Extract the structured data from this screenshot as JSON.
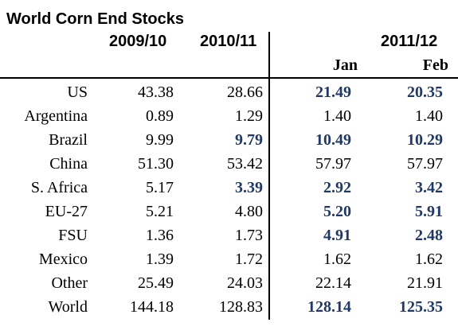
{
  "title": "World Corn End Stocks",
  "headers": {
    "col_2009": "2009/10",
    "col_2010": "2010/11",
    "col_2011": "2011/12",
    "jan": "Jan",
    "feb": "Feb"
  },
  "colors": {
    "revised": "#1f3864",
    "text": "#000000"
  },
  "rows": [
    {
      "name": "US",
      "y2009": "43.38",
      "y2010": "28.66",
      "jan": "21.49",
      "feb": "20.35"
    },
    {
      "name": "Argentina",
      "y2009": "0.89",
      "y2010": "1.29",
      "jan": "1.40",
      "feb": "1.40"
    },
    {
      "name": "Brazil",
      "y2009": "9.99",
      "y2010": "9.79",
      "jan": "10.49",
      "feb": "10.29"
    },
    {
      "name": "China",
      "y2009": "51.30",
      "y2010": "53.42",
      "jan": "57.97",
      "feb": "57.97"
    },
    {
      "name": "S. Africa",
      "y2009": "5.17",
      "y2010": "3.39",
      "jan": "2.92",
      "feb": "3.42"
    },
    {
      "name": "EU-27",
      "y2009": "5.21",
      "y2010": "4.80",
      "jan": "5.20",
      "feb": "5.91"
    },
    {
      "name": "FSU",
      "y2009": "1.36",
      "y2010": "1.73",
      "jan": "4.91",
      "feb": "2.48"
    },
    {
      "name": "Mexico",
      "y2009": "1.39",
      "y2010": "1.72",
      "jan": "1.62",
      "feb": "1.62"
    },
    {
      "name": "Other",
      "y2009": "25.49",
      "y2010": "24.03",
      "jan": "22.14",
      "feb": "21.91"
    },
    {
      "name": "World",
      "y2009": "144.18",
      "y2010": "128.83",
      "jan": "128.14",
      "feb": "125.35"
    }
  ]
}
